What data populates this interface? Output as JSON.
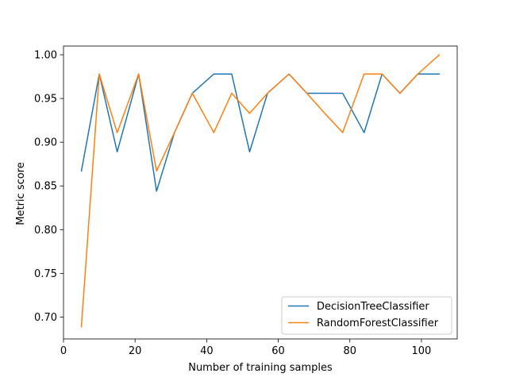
{
  "chart_data": {
    "type": "line",
    "title": "",
    "xlabel": "Number of training samples",
    "ylabel": "Metric score",
    "xlim": [
      0,
      110
    ],
    "ylim": [
      0.675,
      1.01
    ],
    "xticks": [
      0,
      20,
      40,
      60,
      80,
      100
    ],
    "yticks": [
      0.7,
      0.75,
      0.8,
      0.85,
      0.9,
      0.95,
      1.0
    ],
    "xtick_labels": [
      "0",
      "20",
      "40",
      "60",
      "80",
      "100"
    ],
    "ytick_labels": [
      "0.70",
      "0.75",
      "0.80",
      "0.85",
      "0.90",
      "0.95",
      "1.00"
    ],
    "grid": false,
    "legend_position": "bottom-right",
    "x": [
      5,
      10,
      15,
      21,
      26,
      31,
      36,
      42,
      47,
      52,
      57,
      63,
      68,
      73,
      78,
      84,
      89,
      94,
      99,
      105
    ],
    "series": [
      {
        "name": "DecisionTreeClassifier",
        "color": "#1f77b4",
        "values": [
          0.867,
          0.978,
          0.889,
          0.978,
          0.844,
          0.911,
          0.956,
          0.978,
          0.978,
          0.889,
          0.956,
          0.978,
          0.956,
          0.956,
          0.956,
          0.911,
          0.978,
          0.956,
          0.978,
          0.978
        ]
      },
      {
        "name": "RandomForestClassifier",
        "color": "#ff7f0e",
        "values": [
          0.689,
          0.978,
          0.911,
          0.978,
          0.867,
          0.911,
          0.956,
          0.911,
          0.956,
          0.933,
          0.956,
          0.978,
          0.956,
          0.933,
          0.911,
          0.978,
          0.978,
          0.956,
          0.978,
          1.0
        ]
      }
    ]
  }
}
